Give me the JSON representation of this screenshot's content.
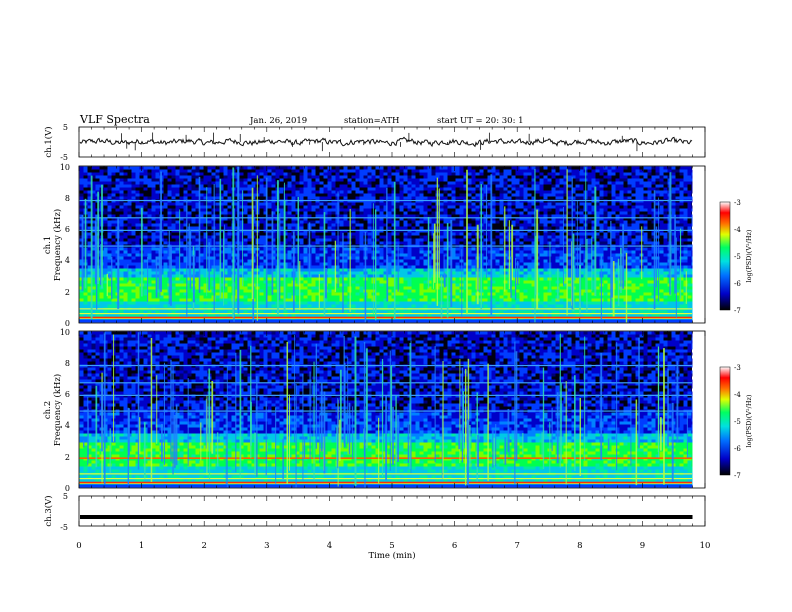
{
  "header": {
    "title": "VLF  Spectra",
    "date": "Jan. 26, 2019",
    "station": "station=ATH",
    "start": "start  UT  =   20: 30: 1"
  },
  "chart_data": {
    "type": "heatmap",
    "time_axis": {
      "label": "Time  (min)",
      "range": [
        0,
        10
      ],
      "ticks": [
        "0",
        "1",
        "2",
        "3",
        "4",
        "5",
        "6",
        "7",
        "8",
        "9",
        "10"
      ]
    },
    "panels": [
      {
        "id": "ch1-waveform",
        "type": "line",
        "ylabel": "ch.1(V)",
        "ylim": [
          -5,
          5
        ],
        "yticks": [
          "5",
          "-5"
        ]
      },
      {
        "id": "ch1-spectrogram",
        "type": "heatmap",
        "ylabel": "ch.1\nFrequency (kHz)",
        "ylabel_lines": [
          "ch.1",
          "Frequency  (kHz)"
        ],
        "ylim": [
          0,
          10
        ],
        "yticks": [
          "0",
          "2",
          "4",
          "6",
          "8",
          "10"
        ],
        "colorbar": {
          "label": "log(PSD)(V²/Hz)",
          "range": [
            -7,
            -3
          ],
          "ticks": [
            "-3",
            "-4",
            "-5",
            "-6",
            "-7"
          ]
        },
        "features": {
          "noise_band_khz": [
            1.5,
            3.0
          ],
          "spherics": "vertical broadband lines across 0-10 kHz",
          "horizontal_lines_khz": [
            0.3,
            0.6,
            0.9,
            4.9,
            5.9,
            6.7,
            7.8
          ]
        }
      },
      {
        "id": "ch2-spectrogram",
        "type": "heatmap",
        "ylabel": "ch.2\nFrequency (kHz)",
        "ylabel_lines": [
          "ch.2",
          "Frequency  (kHz)"
        ],
        "ylim": [
          0,
          10
        ],
        "yticks": [
          "0",
          "2",
          "4",
          "6",
          "8",
          "10"
        ],
        "colorbar": {
          "label": "log(PSD)(V²/Hz)",
          "range": [
            -7,
            -3
          ],
          "ticks": [
            "-3",
            "-4",
            "-5",
            "-6",
            "-7"
          ]
        },
        "features": {
          "noise_band_khz": [
            1.5,
            3.0
          ],
          "red_line_khz": 1.9,
          "spherics": "vertical broadband lines across 0-10 kHz",
          "horizontal_lines_khz": [
            0.3,
            0.6,
            0.9,
            4.9,
            5.9,
            6.7,
            7.8
          ]
        }
      },
      {
        "id": "ch3-waveform",
        "type": "line",
        "ylabel": "ch.3(V)",
        "ylim": [
          -5,
          5
        ],
        "yticks": [
          "5",
          "-5"
        ],
        "constant_value": -2.0
      }
    ]
  }
}
